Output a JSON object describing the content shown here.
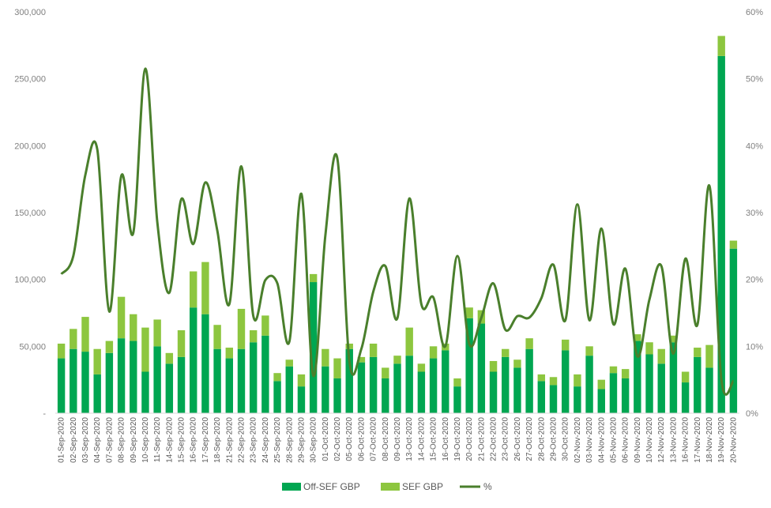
{
  "chart_data": {
    "type": "bar",
    "stacked": true,
    "colors": {
      "off_sef": "#00a651",
      "sef": "#8dc63f",
      "pct": "#4a7f2c"
    },
    "categories": [
      "01-Sep-2020",
      "02-Sep-2020",
      "03-Sep-2020",
      "04-Sep-2020",
      "07-Sep-2020",
      "08-Sep-2020",
      "09-Sep-2020",
      "10-Sep-2020",
      "11-Sep-2020",
      "14-Sep-2020",
      "15-Sep-2020",
      "16-Sep-2020",
      "17-Sep-2020",
      "18-Sep-2020",
      "21-Sep-2020",
      "22-Sep-2020",
      "23-Sep-2020",
      "24-Sep-2020",
      "25-Sep-2020",
      "28-Sep-2020",
      "29-Sep-2020",
      "30-Sep-2020",
      "01-Oct-2020",
      "02-Oct-2020",
      "05-Oct-2020",
      "06-Oct-2020",
      "07-Oct-2020",
      "08-Oct-2020",
      "09-Oct-2020",
      "13-Oct-2020",
      "14-Oct-2020",
      "15-Oct-2020",
      "16-Oct-2020",
      "19-Oct-2020",
      "20-Oct-2020",
      "21-Oct-2020",
      "22-Oct-2020",
      "23-Oct-2020",
      "26-Oct-2020",
      "27-Oct-2020",
      "28-Oct-2020",
      "29-Oct-2020",
      "30-Oct-2020",
      "02-Nov-2020",
      "03-Nov-2020",
      "04-Nov-2020",
      "05-Nov-2020",
      "06-Nov-2020",
      "09-Nov-2020",
      "10-Nov-2020",
      "12-Nov-2020",
      "13-Nov-2020",
      "16-Nov-2020",
      "17-Nov-2020",
      "18-Nov-2020",
      "19-Nov-2020",
      "20-Nov-2020"
    ],
    "series": [
      {
        "name": "Off-SEF GBP",
        "kind": "bar",
        "axis": "left",
        "values": [
          41000,
          48000,
          46000,
          29000,
          45000,
          56000,
          54000,
          31000,
          50000,
          37000,
          42000,
          79000,
          74000,
          48000,
          41000,
          48000,
          53000,
          58000,
          24000,
          35000,
          20000,
          98000,
          35000,
          26000,
          48000,
          38000,
          42000,
          26000,
          37000,
          43000,
          31000,
          41000,
          47000,
          20000,
          71000,
          67000,
          31000,
          42000,
          34000,
          48000,
          24000,
          21000,
          47000,
          20000,
          43000,
          18000,
          30000,
          26000,
          54000,
          44000,
          37000,
          53000,
          23000,
          42000,
          34000,
          267000,
          123000
        ]
      },
      {
        "name": "SEF GBP",
        "kind": "bar",
        "axis": "left",
        "values": [
          11000,
          15000,
          26000,
          19000,
          9000,
          31000,
          20000,
          33000,
          20000,
          8000,
          20000,
          27000,
          39000,
          18000,
          8000,
          30000,
          9000,
          15000,
          6000,
          5000,
          9000,
          6000,
          13000,
          15000,
          4000,
          4000,
          10000,
          8000,
          6000,
          21000,
          6000,
          9000,
          5000,
          6000,
          8000,
          10000,
          8000,
          6000,
          6000,
          8000,
          5000,
          6000,
          8000,
          9000,
          7000,
          7000,
          5000,
          7000,
          5000,
          9000,
          11000,
          5000,
          8000,
          7000,
          17000,
          15000,
          6000
        ]
      },
      {
        "name": "%",
        "kind": "line",
        "axis": "right",
        "values": [
          20.8,
          23.5,
          35.6,
          39.4,
          15.2,
          35.5,
          27.0,
          51.5,
          28.6,
          18.0,
          32.0,
          25.3,
          34.5,
          27.3,
          16.3,
          36.9,
          14.5,
          19.9,
          19.4,
          10.7,
          32.8,
          5.6,
          26.5,
          38.1,
          7.8,
          9.6,
          18.2,
          22.0,
          14.2,
          32.1,
          16.3,
          17.3,
          10.0,
          23.5,
          10.3,
          14.3,
          19.4,
          12.5,
          14.5,
          14.3,
          17.2,
          22.2,
          13.9,
          31.2,
          13.9,
          27.6,
          13.3,
          21.6,
          8.5,
          17.0,
          22.0,
          8.9,
          23.1,
          13.2,
          34.0,
          5.0,
          4.8
        ]
      }
    ],
    "left_axis": {
      "ylim": [
        0,
        300000
      ],
      "ticks": [
        "-",
        "50,000",
        "100,000",
        "150,000",
        "200,000",
        "250,000",
        "300,000"
      ]
    },
    "right_axis": {
      "ylim": [
        0,
        60
      ],
      "ticks": [
        "0%",
        "10%",
        "20%",
        "30%",
        "40%",
        "50%",
        "60%"
      ]
    },
    "legend": {
      "position": "bottom",
      "items": [
        "Off-SEF GBP",
        "SEF GBP",
        "%"
      ]
    },
    "grid": false
  }
}
